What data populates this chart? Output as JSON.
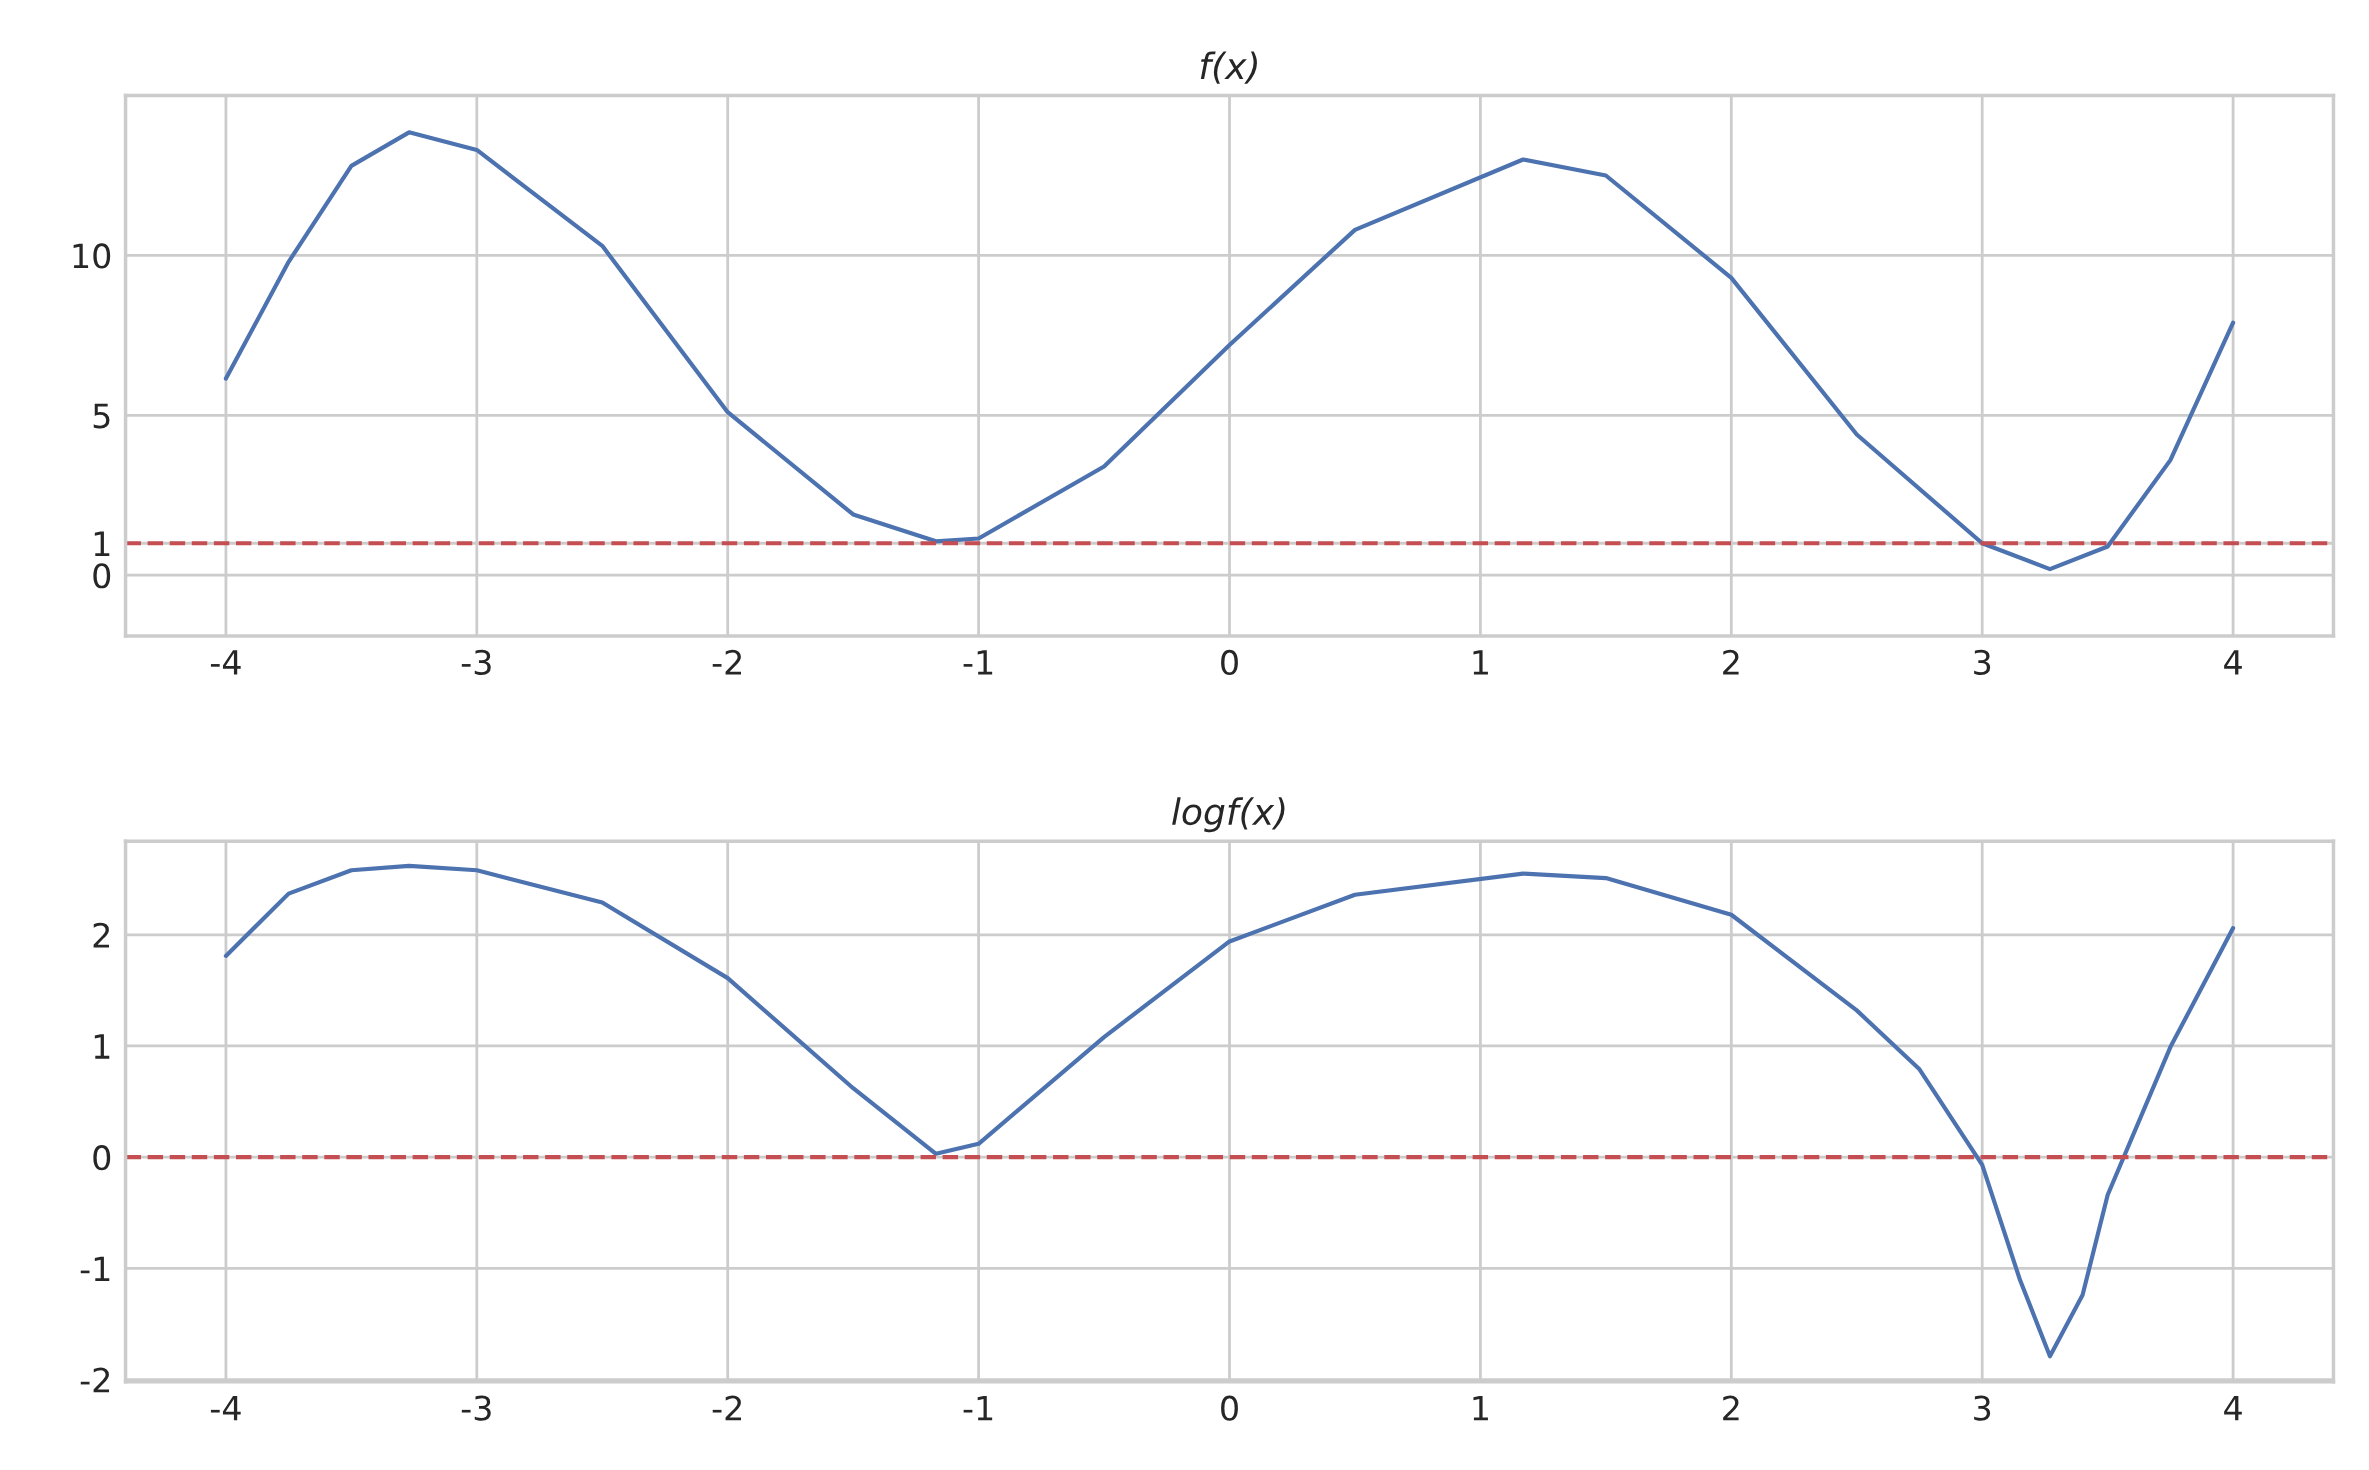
{
  "chart_data": [
    {
      "type": "line",
      "title": "f(x)",
      "x": [
        -4,
        -3.75,
        -3.5,
        -3.27,
        -3,
        -2.5,
        -2,
        -1.5,
        -1.17,
        -1,
        -0.5,
        0,
        0.5,
        1.17,
        1.5,
        2,
        2.5,
        3,
        3.27,
        3.5,
        3.75,
        4
      ],
      "series": [
        {
          "color": "#4c72b0",
          "values": [
            6.15,
            9.8,
            12.8,
            13.85,
            13.3,
            10.3,
            5.1,
            1.9,
            1.06,
            1.15,
            3.4,
            7.2,
            10.8,
            13.0,
            12.5,
            9.3,
            4.4,
            1.0,
            0.19,
            0.9,
            3.6,
            7.9
          ]
        }
      ],
      "xlim": [
        -4.4,
        4.4
      ],
      "ylim": [
        -1.9,
        15
      ],
      "xticks": [
        -4,
        -3,
        -2,
        -1,
        0,
        1,
        2,
        3,
        4
      ],
      "yticks": [
        0,
        1,
        5,
        10
      ],
      "grid": true,
      "line_style": "solid",
      "ref_lines": [
        {
          "axis": "y",
          "value": 1,
          "color": "#c44e52",
          "line_style": "dashed"
        }
      ]
    },
    {
      "type": "line",
      "title": "logf(x)",
      "x": [
        -4,
        -3.75,
        -3.5,
        -3.27,
        -3,
        -2.5,
        -2,
        -1.5,
        -1.17,
        -1,
        -0.5,
        0,
        0.5,
        1.17,
        1.5,
        2,
        2.5,
        2.75,
        3,
        3.15,
        3.27,
        3.4,
        3.5,
        3.75,
        4
      ],
      "series": [
        {
          "color": "#4c72b0",
          "values": [
            1.81,
            2.37,
            2.58,
            2.62,
            2.58,
            2.29,
            1.61,
            0.62,
            0.03,
            0.12,
            1.08,
            1.94,
            2.36,
            2.55,
            2.51,
            2.18,
            1.32,
            0.79,
            -0.07,
            -1.1,
            -1.79,
            -1.24,
            -0.34,
            0.99,
            2.06
          ]
        }
      ],
      "xlim": [
        -4.4,
        4.4
      ],
      "ylim": [
        -2.02,
        2.84
      ],
      "xticks": [
        -4,
        -3,
        -2,
        -1,
        0,
        1,
        2,
        3,
        4
      ],
      "yticks": [
        -2,
        -1,
        0,
        1,
        2
      ],
      "grid": true,
      "line_style": "solid",
      "ref_lines": [
        {
          "axis": "y",
          "value": 0,
          "color": "#c44e52",
          "line_style": "dashed"
        }
      ]
    }
  ]
}
